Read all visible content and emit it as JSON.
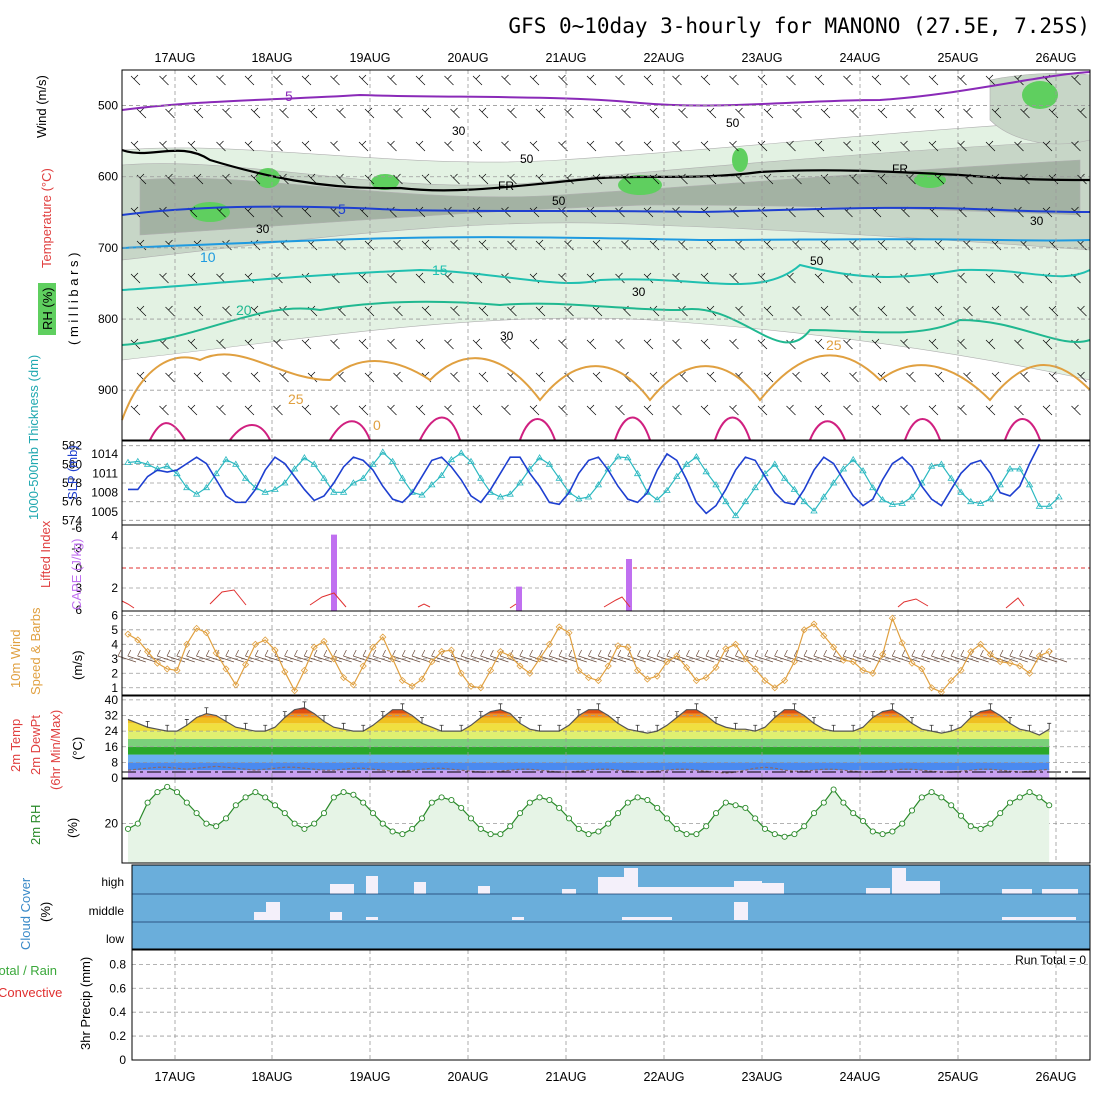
{
  "title": "GFS 0~10day 3-hourly for MANONO (27.5E, 7.25S)",
  "dates": [
    "17AUG",
    "18AUG",
    "19AUG",
    "20AUG",
    "21AUG",
    "22AUG",
    "23AUG",
    "24AUG",
    "25AUG",
    "26AUG"
  ],
  "colors": {
    "grid": "#9a9a9a",
    "rh_light": "#e3f2e3",
    "rh_mid": "#c7d6c7",
    "rh_dark": "#a3b2a3",
    "rh_high": "#5fcf5f",
    "slp": "#1e3fd0",
    "thickness": "#2ab8c0",
    "lifted_index": "#e03030",
    "cape": "#c070f0",
    "wind10m": "#e0a040",
    "cloud": "#6aaedb",
    "rh2m": "#2a8a2a",
    "rh2m_fill": "#e6f4e6"
  },
  "upper_air": {
    "ylabel_wind": "Wind (m/s)",
    "ylabel_temp": "Temperature (°C)",
    "ylabel_rh": "RH (%)",
    "ylabel_p": "( m i l l i b a r s )",
    "pressure_ticks": [
      "500",
      "600",
      "700",
      "800",
      "900"
    ],
    "freezing_label": "FR",
    "isotherms": [
      {
        "label": "5",
        "color": "#8a2ab8"
      },
      {
        "label": "5",
        "color": "#1e3fd0"
      },
      {
        "label": "10",
        "color": "#1e9ae0"
      },
      {
        "label": "15",
        "color": "#20c0b0"
      },
      {
        "label": "20",
        "color": "#20b890"
      },
      {
        "label": "25",
        "color": "#e0a040"
      },
      {
        "label": "0",
        "color": "#e0a040"
      }
    ],
    "rh_labels": [
      "30",
      "50",
      "30",
      "50",
      "50",
      "30",
      "30",
      "50",
      "30"
    ]
  },
  "slp_panel": {
    "ylabel_thickness": "1000-500mb Thickness (dm)",
    "ylabel_slp": "SLP (mb)",
    "thickness_ticks": [
      "582",
      "580",
      "578",
      "576",
      "574"
    ],
    "slp_ticks": [
      "1014",
      "1011",
      "1008",
      "1005"
    ]
  },
  "cape_panel": {
    "ylabel_li": "Lifted Index",
    "ylabel_cape": "CAPE (J/kg)",
    "li_ticks": [
      "-6",
      "-3",
      "0",
      "3",
      "6"
    ],
    "cape_ticks": [
      "4",
      "2"
    ]
  },
  "wind_panel": {
    "ylabel_a": "10m Wind",
    "ylabel_b": "Speed & Barbs",
    "unit": "(m/s)",
    "ticks": [
      "6",
      "5",
      "4",
      "3",
      "2",
      "1"
    ]
  },
  "temp_panel": {
    "ylabel_a": "2m Temp",
    "ylabel_b": "2m DewPt",
    "ylabel_c": "(6hr Min/Max)",
    "unit": "(°C)",
    "ticks": [
      "40",
      "32",
      "24",
      "16",
      "8",
      "0"
    ]
  },
  "rh_panel": {
    "ylabel": "2m RH",
    "unit": "(%)",
    "ticks": [
      "20"
    ]
  },
  "cloud_panel": {
    "ylabel": "Cloud Cover",
    "unit": "(%)",
    "levels": [
      "high",
      "middle",
      "low"
    ]
  },
  "precip_panel": {
    "ylabel_a": "Total / Rain",
    "ylabel_b": "Convective",
    "ylabel_c": "3hr Precip (mm)",
    "ticks": [
      "0.8",
      "0.6",
      "0.4",
      "0.2",
      "0"
    ],
    "run_total": "Run Total = 0"
  },
  "chart_data": [
    {
      "type": "line",
      "name": "SLP",
      "unit": "mb",
      "ylim": [
        1003,
        1016
      ],
      "x_start": "16AUG 15Z",
      "x_step_hours": 3,
      "values": [
        1008.5,
        1008.5,
        1010.5,
        1011.5,
        1011.2,
        1011.5,
        1012.5,
        1013.5,
        1012.5,
        1010.0,
        1007.5,
        1006.5,
        1006.5,
        1008.5,
        1011.5,
        1013.5,
        1012.5,
        1010.5,
        1008.5,
        1006.8,
        1007.5,
        1009.5,
        1012.0,
        1013.5,
        1013.0,
        1011.5,
        1009.0,
        1007.0,
        1006.5,
        1008.0,
        1010.5,
        1013.0,
        1013.5,
        1012.0,
        1010.0,
        1007.5,
        1006.5,
        1008.5,
        1011.0,
        1013.5,
        1013.5,
        1011.0,
        1009.0,
        1006.5,
        1006.2,
        1008.0,
        1011.0,
        1013.0,
        1013.5,
        1011.5,
        1009.0,
        1007.0,
        1006.5,
        1008.0,
        1011.5,
        1014.0,
        1013.0,
        1010.0,
        1006.5,
        1004.8,
        1006.0,
        1008.5,
        1011.5,
        1013.5,
        1013.0,
        1010.5,
        1008.0,
        1006.5,
        1006.2,
        1008.5,
        1011.5,
        1013.5,
        1012.5,
        1010.0,
        1007.5,
        1006.0,
        1007.0,
        1010.0,
        1012.5,
        1013.5,
        1012.0,
        1009.0,
        1007.0,
        1006.0,
        1008.5,
        1011.0,
        1012.5,
        1013.0,
        1011.0,
        1008.0,
        1007.5,
        1009.0,
        1012.5,
        1015.5
      ]
    },
    {
      "type": "line",
      "name": "1000-500mb Thickness",
      "unit": "dm",
      "ylim": [
        573.5,
        582.5
      ],
      "x_start": "16AUG 15Z",
      "x_step_hours": 3,
      "values": [
        580.2,
        580.3,
        580.0,
        579.5,
        579.8,
        579.0,
        577.5,
        576.8,
        577.5,
        579.0,
        580.5,
        580.0,
        578.5,
        577.5,
        577.0,
        577.3,
        578.0,
        579.5,
        580.7,
        580.0,
        578.5,
        577.0,
        577.0,
        578.0,
        578.5,
        580.0,
        581.3,
        580.3,
        578.5,
        577.0,
        576.7,
        577.8,
        578.8,
        580.5,
        581.2,
        580.3,
        578.5,
        577.0,
        576.5,
        576.8,
        578.0,
        579.5,
        580.7,
        580.0,
        578.5,
        577.0,
        576.3,
        576.5,
        577.8,
        579.5,
        580.8,
        580.7,
        579.0,
        577.0,
        576.2,
        577.2,
        578.7,
        580.0,
        580.8,
        579.2,
        577.8,
        576.0,
        574.5,
        576.0,
        577.5,
        579.0,
        580.0,
        578.5,
        577.3,
        576.0,
        575.0,
        576.5,
        578.0,
        579.5,
        580.5,
        579.3,
        577.5,
        576.2,
        575.7,
        575.8,
        576.5,
        578.0,
        579.8,
        580.0,
        578.5,
        577.0,
        576.0,
        575.8,
        576.3,
        577.8,
        579.5,
        579.5,
        577.8,
        575.5,
        575.5,
        576.5
      ]
    },
    {
      "type": "line",
      "name": "2m RH",
      "unit": "%",
      "x_start": "16AUG 15Z",
      "x_step_hours": 3,
      "values": [
        18,
        20,
        28,
        32,
        34,
        32,
        28,
        24,
        20,
        19,
        22,
        27,
        30,
        32,
        30,
        27,
        24,
        20,
        18,
        20,
        24,
        30,
        32,
        31,
        28,
        24,
        20,
        17,
        16,
        18,
        22,
        28,
        30,
        29,
        26,
        22,
        18,
        16,
        16,
        19,
        24,
        28,
        30,
        29,
        26,
        22,
        18,
        16,
        17,
        20,
        24,
        28,
        30,
        29,
        26,
        22,
        18,
        16,
        16,
        19,
        24,
        28,
        27,
        26,
        22,
        18,
        16,
        15,
        16,
        19,
        24,
        28,
        33,
        28,
        24,
        21,
        17,
        16,
        17,
        20,
        25,
        30,
        32,
        30,
        27,
        23,
        19,
        18,
        20,
        24,
        28,
        30,
        32,
        30,
        27
      ]
    },
    {
      "type": "bar",
      "name": "CAPE",
      "unit": "J/kg",
      "categories": [
        "18AUG 15Z",
        "20AUG 12Z",
        "21AUG 15Z"
      ],
      "values": [
        4.7,
        1.5,
        3.2
      ]
    },
    {
      "type": "line",
      "name": "10m Wind Speed",
      "unit": "m/s",
      "ylim": [
        0.5,
        6.3
      ],
      "x_start": "16AUG 15Z",
      "x_step_hours": 3,
      "values": [
        4.7,
        4.3,
        3.5,
        2.7,
        2.3,
        2.2,
        4.0,
        5.1,
        4.8,
        3.4,
        2.3,
        1.2,
        2.6,
        4.0,
        4.3,
        3.6,
        2.1,
        0.8,
        2.2,
        3.8,
        4.2,
        3.0,
        1.7,
        1.2,
        2.5,
        3.8,
        4.5,
        3.0,
        1.5,
        1.1,
        1.6,
        2.8,
        3.5,
        3.6,
        2.0,
        1.1,
        1.0,
        2.2,
        3.5,
        3.2,
        2.5,
        2.0,
        3.0,
        4.0,
        5.2,
        4.8,
        2.2,
        1.7,
        1.5,
        2.5,
        3.9,
        3.8,
        2.2,
        1.6,
        1.8,
        2.8,
        3.2,
        2.4,
        1.5,
        1.7,
        2.4,
        3.7,
        4.0,
        3.0,
        2.3,
        1.5,
        1.0,
        1.5,
        2.8,
        5.0,
        5.4,
        4.6,
        3.8,
        2.9,
        2.8,
        2.2,
        2.0,
        3.3,
        5.8,
        4.1,
        2.7,
        2.3,
        1.0,
        0.7,
        1.5,
        2.2,
        3.5,
        4.0,
        3.3,
        2.8,
        2.7,
        2.5,
        2.0,
        3.2,
        3.5
      ]
    },
    {
      "type": "area",
      "name": "2m Temp",
      "unit": "°C",
      "ylim": [
        0,
        40
      ],
      "x_start": "16AUG 15Z",
      "x_step_hours": 3,
      "values": [
        30,
        28,
        26,
        25,
        24,
        24,
        27,
        31,
        33,
        32,
        29,
        26,
        25,
        24,
        24,
        26,
        31,
        35,
        36,
        33,
        29,
        26,
        25,
        24,
        24,
        27,
        31,
        35,
        35,
        32,
        28,
        26,
        24,
        24,
        24,
        27,
        31,
        34,
        35,
        33,
        28,
        25,
        24,
        24,
        24,
        27,
        32,
        35,
        35,
        32,
        28,
        25,
        24,
        23,
        24,
        27,
        31,
        35,
        35,
        32,
        28,
        26,
        25,
        25,
        24,
        26,
        31,
        35,
        35,
        32,
        28,
        25,
        24,
        24,
        24,
        26,
        31,
        34,
        35,
        32,
        28,
        25,
        24,
        23,
        24,
        26,
        31,
        34,
        35,
        32,
        28,
        25,
        24,
        22,
        25
      ]
    },
    {
      "type": "line",
      "name": "2m DewPt",
      "unit": "°C",
      "ylim": [
        0,
        40
      ],
      "x_start": "16AUG 15Z",
      "x_step_hours": 3,
      "values": [
        4,
        4.5,
        5,
        5.5,
        5.5,
        5,
        4.5,
        5,
        5.5,
        6,
        5.5,
        5,
        4.5,
        4,
        4.5,
        5,
        5.5,
        5.5,
        5,
        4.5,
        4,
        4,
        4.5,
        5,
        5,
        4.5,
        4,
        3.5,
        3.5,
        4,
        4.5,
        5,
        5,
        4.5,
        4,
        3.5,
        3,
        3,
        3.5,
        4,
        4.5,
        4.5,
        4,
        3.5,
        3,
        3,
        3.5,
        4,
        4.5,
        4.5,
        4,
        3.5,
        3,
        3,
        3.5,
        4,
        4.5,
        4.5,
        4,
        3.5,
        3,
        2.5,
        3,
        4,
        5,
        5.5,
        5,
        4,
        3.5,
        3.5,
        4,
        4.5,
        4.5,
        4,
        3.5,
        3,
        3,
        3.5,
        4,
        4.5,
        4.5,
        4,
        3.5,
        3,
        3,
        3.5,
        4,
        4.5,
        4.5,
        4,
        3.5,
        3,
        3.5,
        4,
        4.5
      ]
    },
    {
      "type": "bar",
      "name": "3hr Precip",
      "unit": "mm",
      "ylim": [
        0,
        0.9
      ],
      "categories": [],
      "values": []
    }
  ]
}
